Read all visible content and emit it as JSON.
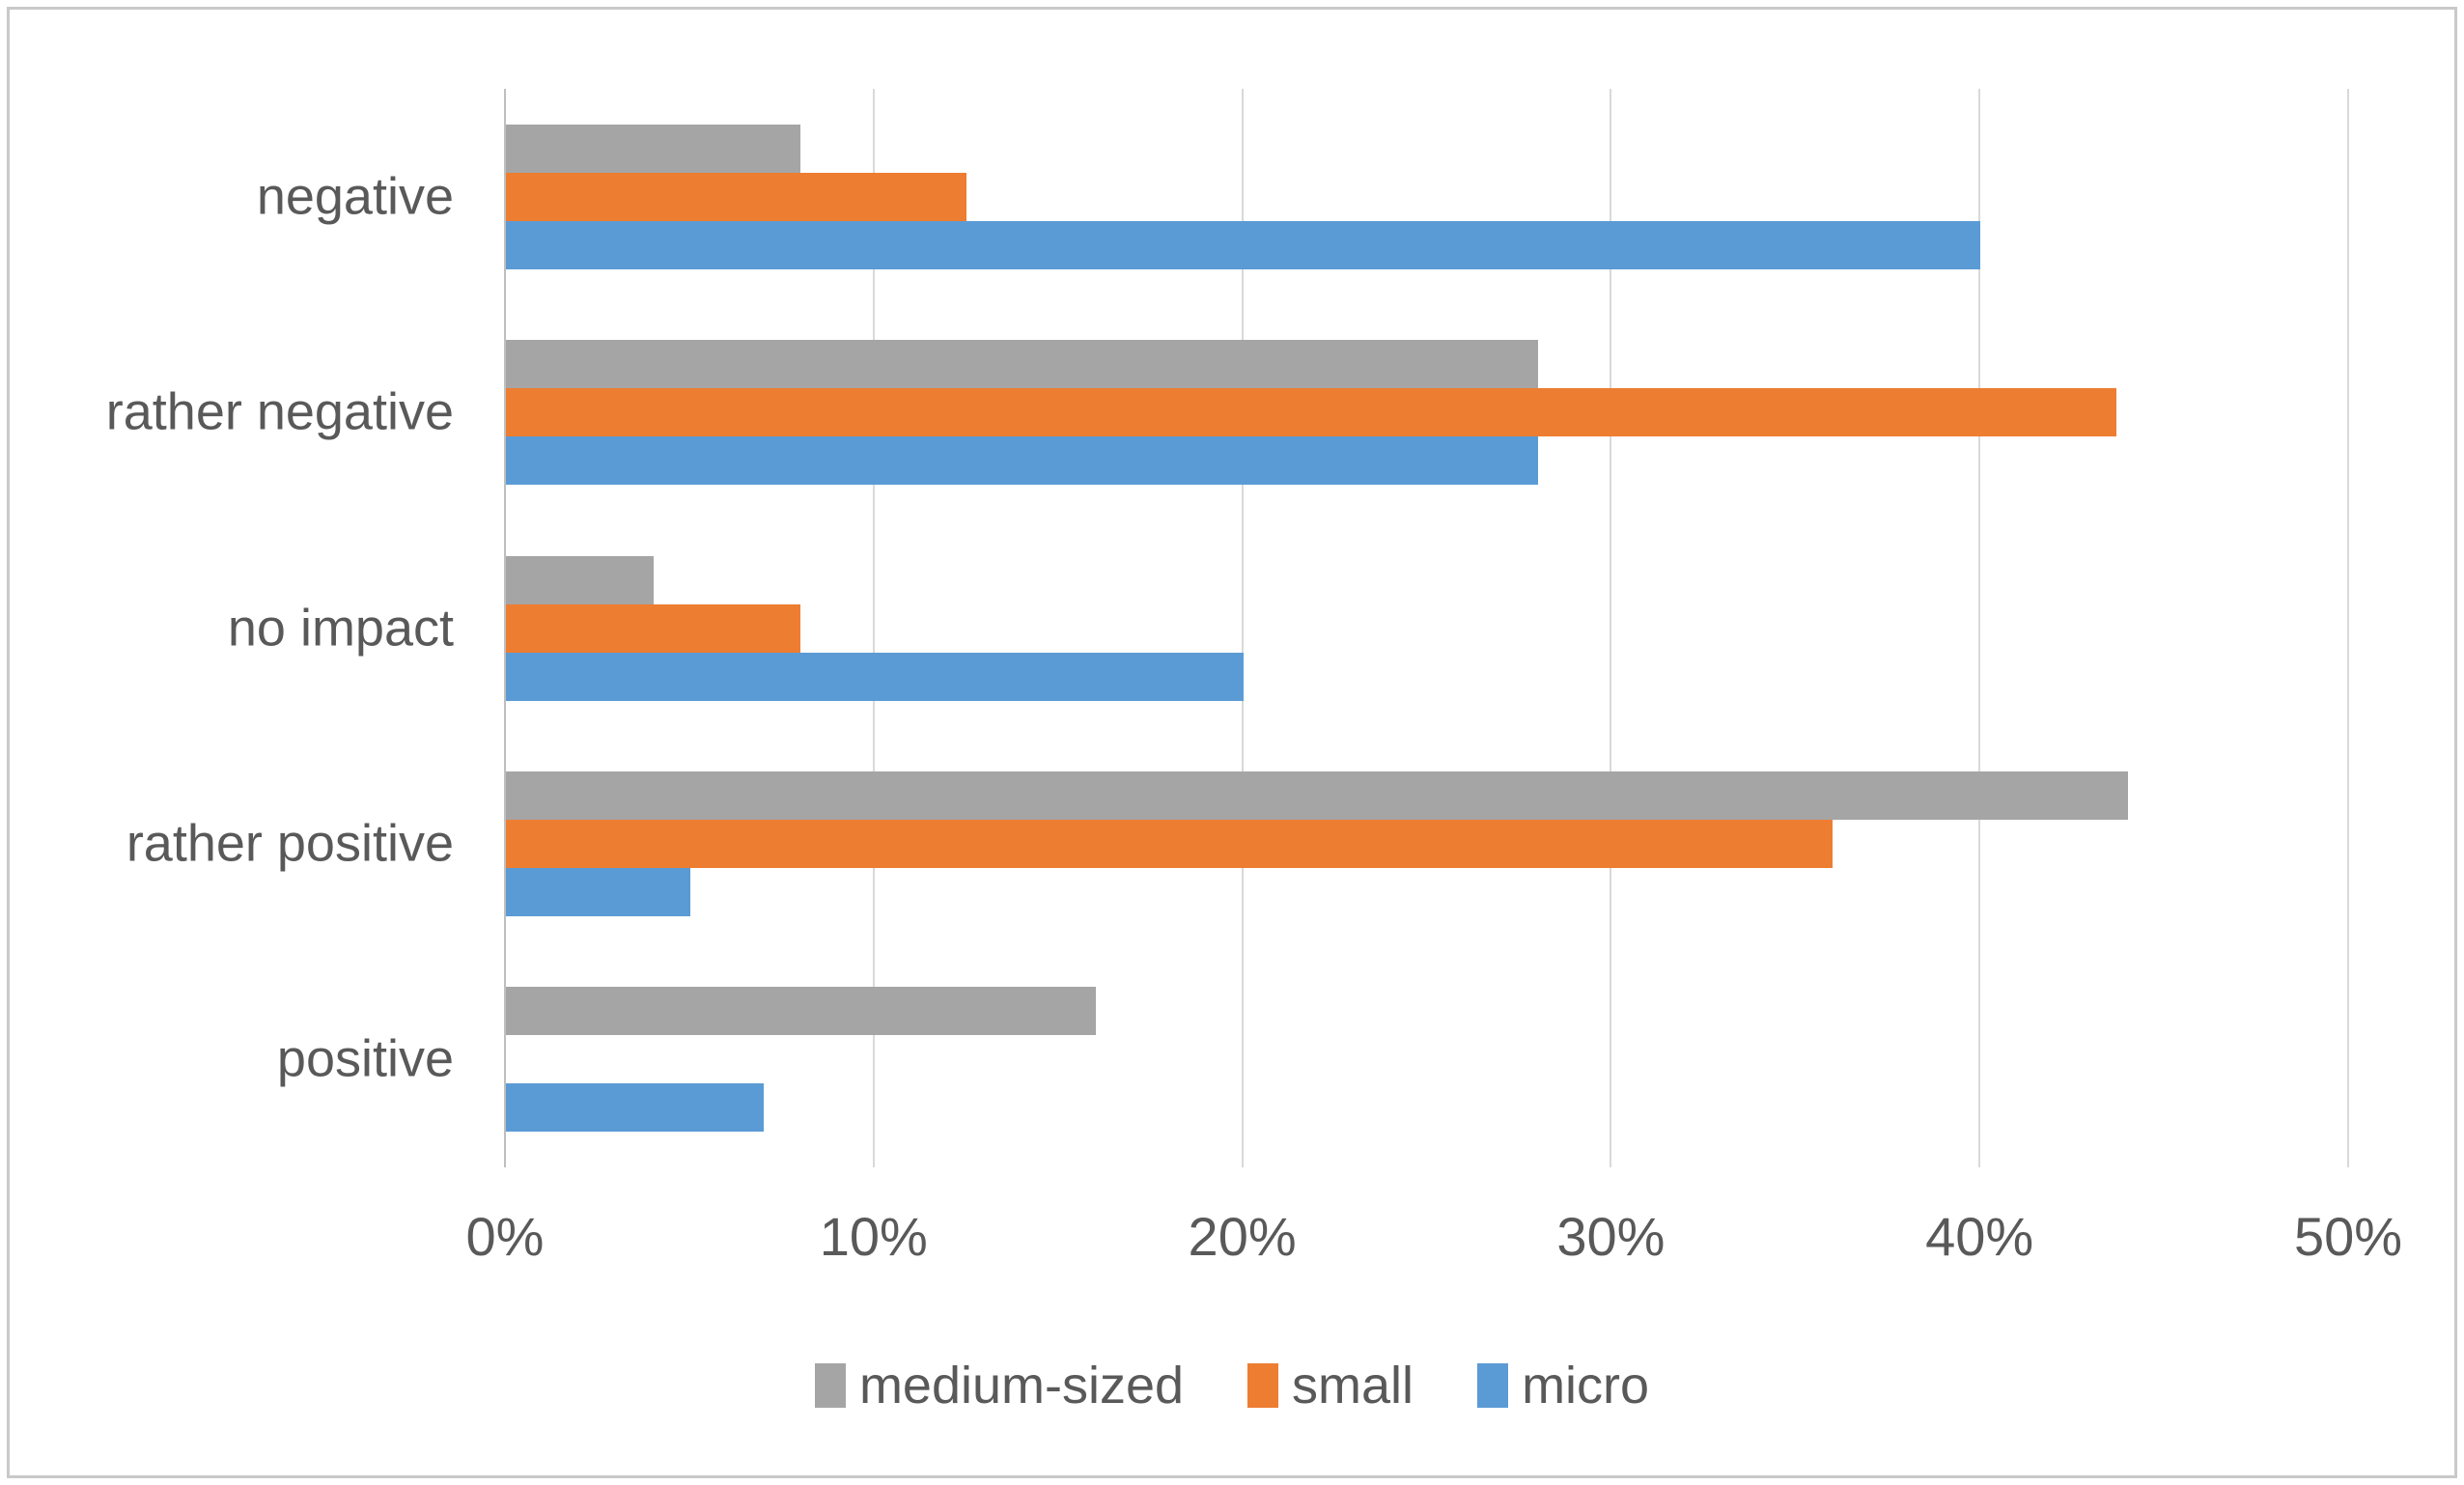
{
  "chart_data": {
    "type": "bar",
    "orientation": "horizontal",
    "title": "",
    "categories": [
      "negative",
      "rather negative",
      "no impact",
      "rather positive",
      "positive"
    ],
    "series": [
      {
        "name": "medium-sized",
        "color": "#A5A5A5",
        "values": [
          8,
          28,
          4,
          44,
          16
        ]
      },
      {
        "name": "small",
        "color": "#ED7D31",
        "values": [
          12.5,
          43.7,
          8,
          36,
          0
        ]
      },
      {
        "name": "micro",
        "color": "#5B9BD5",
        "values": [
          40,
          28,
          20,
          5,
          7
        ]
      }
    ],
    "x_axis": {
      "min": 0,
      "max": 50,
      "tick_step": 10,
      "tick_labels": [
        "0%",
        "10%",
        "20%",
        "30%",
        "40%",
        "50%"
      ],
      "unit": "%"
    },
    "y_axis_label": "",
    "grid": true,
    "legend_position": "bottom",
    "bar_order_top_to_bottom": [
      "medium-sized",
      "small",
      "micro"
    ]
  },
  "colors": {
    "text": "#595959",
    "gridline": "#D9D9D9",
    "axis_line": "#BFBFBF",
    "figure_border": "#C9C9C9",
    "background": "#FFFFFF"
  }
}
